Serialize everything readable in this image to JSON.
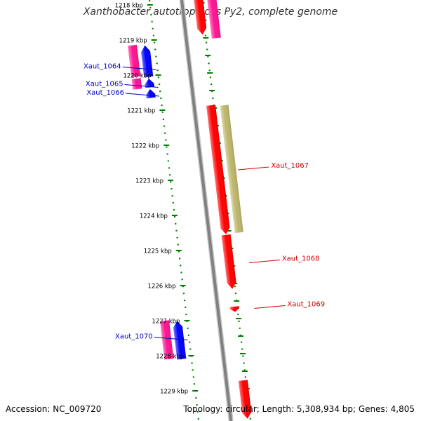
{
  "title": "Xanthobacter autotrophicus Py2, complete genome",
  "footer": {
    "accession": "Accession: NC_009720",
    "summary": "Topology: circular; Length: 5,308,934 bp; Genes: 4,805"
  },
  "colors": {
    "backbone": "#808080",
    "ticks": "#008000",
    "forward_label": "#cc0000",
    "reverse_label": "#0000cc",
    "cds_red": "#ff0000",
    "cds_pink": "#ff1493",
    "cds_blue": "#0000ff",
    "cds_khaki": "#bdb76b"
  },
  "ruler": {
    "unit": "kbp",
    "labels": [
      "1218 kbp",
      "1219 kbp",
      "1220 kbp",
      "1221 kbp",
      "1222 kbp",
      "1223 kbp",
      "1224 kbp",
      "1225 kbp",
      "1226 kbp",
      "1227 kbp",
      "1228 kbp",
      "1229 kbp"
    ],
    "visible_range_kbp": [
      1218.0,
      1229.8
    ]
  },
  "features": [
    {
      "strand": "+",
      "start_kbp": 1217.6,
      "end_kbp": 1218.85,
      "color": "red"
    },
    {
      "strand": "+",
      "start_kbp": 1217.6,
      "end_kbp": 1218.95,
      "color": "pink",
      "outer": true
    },
    {
      "strand": "-",
      "start_kbp": 1219.15,
      "end_kbp": 1220.05,
      "color": "pink",
      "outer": true
    },
    {
      "strand": "-",
      "start_kbp": 1220.1,
      "end_kbp": 1220.4,
      "color": "pink",
      "outer": true
    },
    {
      "strand": "-",
      "start_kbp": 1219.15,
      "end_kbp": 1220.05,
      "color": "blue"
    },
    {
      "strand": "-",
      "start_kbp": 1220.1,
      "end_kbp": 1220.35,
      "color": "blue"
    },
    {
      "strand": "-",
      "start_kbp": 1220.4,
      "end_kbp": 1220.65,
      "color": "blue"
    },
    {
      "strand": "+",
      "start_kbp": 1220.85,
      "end_kbp": 1224.55,
      "color": "red"
    },
    {
      "strand": "+",
      "start_kbp": 1220.85,
      "end_kbp": 1224.5,
      "color": "khaki",
      "outer": true
    },
    {
      "strand": "+",
      "start_kbp": 1224.55,
      "end_kbp": 1226.1,
      "color": "red"
    },
    {
      "strand": "+",
      "start_kbp": 1226.6,
      "end_kbp": 1226.75,
      "color": "red"
    },
    {
      "strand": "-",
      "start_kbp": 1227.0,
      "end_kbp": 1228.1,
      "color": "pink",
      "outer": true
    },
    {
      "strand": "-",
      "start_kbp": 1227.0,
      "end_kbp": 1228.1,
      "color": "blue"
    },
    {
      "strand": "+",
      "start_kbp": 1228.7,
      "end_kbp": 1229.8,
      "color": "red"
    }
  ],
  "gene_labels": [
    {
      "name": "Xaut_1064",
      "strand": "-",
      "kbp": 1219.85
    },
    {
      "name": "Xaut_1065",
      "strand": "-",
      "kbp": 1220.35
    },
    {
      "name": "Xaut_1066",
      "strand": "-",
      "kbp": 1220.6
    },
    {
      "name": "Xaut_1067",
      "strand": "+",
      "kbp": 1222.7
    },
    {
      "name": "Xaut_1068",
      "strand": "+",
      "kbp": 1225.35
    },
    {
      "name": "Xaut_1069",
      "strand": "+",
      "kbp": 1226.65
    },
    {
      "name": "Xaut_1070",
      "strand": "-",
      "kbp": 1227.55
    }
  ]
}
